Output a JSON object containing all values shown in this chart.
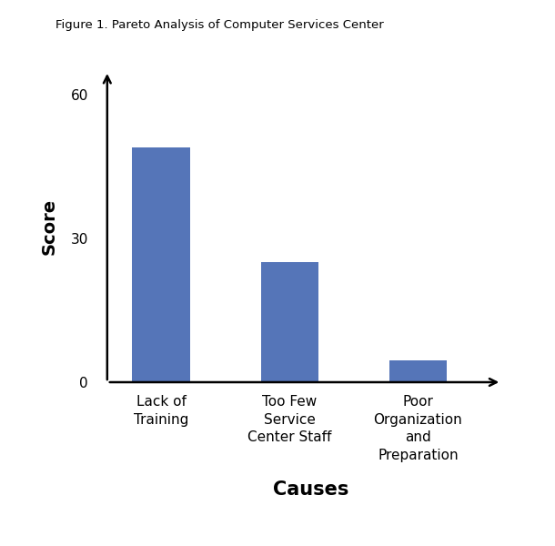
{
  "title": "Figure 1. Pareto Analysis of Computer Services Center",
  "categories": [
    "Lack of\nTraining",
    "Too Few\nService\nCenter Staff",
    "Poor\nOrganization\nand\nPreparation"
  ],
  "values": [
    49,
    25,
    4.5
  ],
  "bar_color": "#5575B8",
  "xlabel": "Causes",
  "ylabel": "Score",
  "yticks": [
    0,
    30,
    60
  ],
  "ylim": [
    0,
    65
  ],
  "bar_width": 0.45,
  "title_fontsize": 9.5,
  "xlabel_fontsize": 15,
  "ylabel_fontsize": 14,
  "tick_fontsize": 11,
  "background_color": "#ffffff"
}
